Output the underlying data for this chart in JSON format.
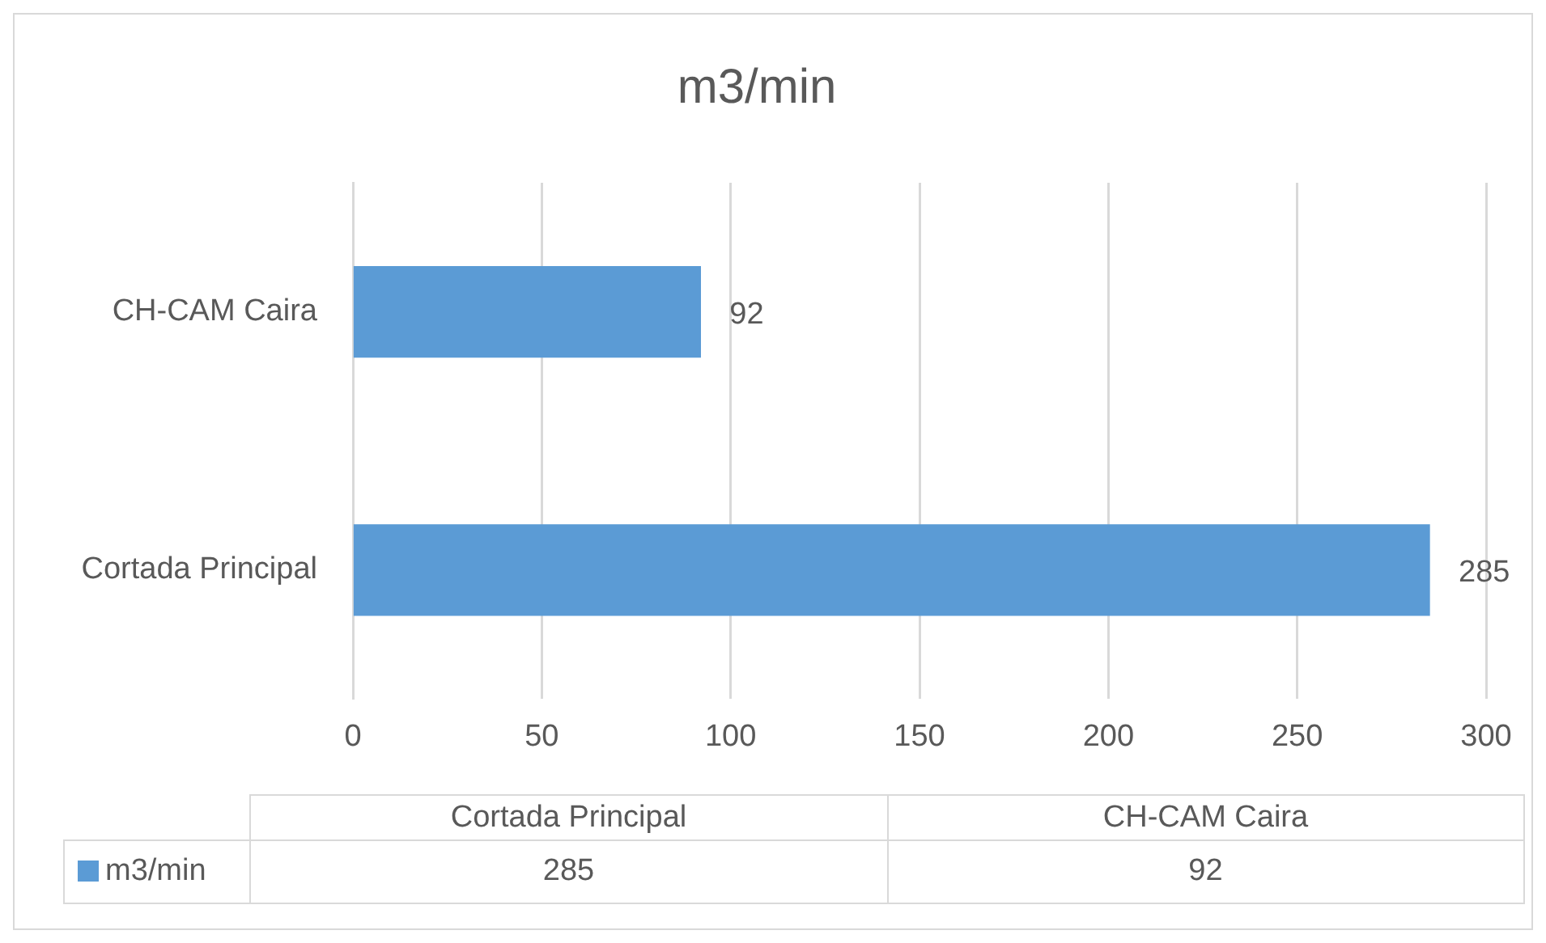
{
  "chart_data": {
    "type": "bar",
    "orientation": "horizontal",
    "title": "m3/min",
    "categories": [
      "CH-CAM Caira",
      "Cortada Principal"
    ],
    "series": [
      {
        "name": "m3/min",
        "color": "#5b9bd5",
        "values": [
          92,
          285
        ]
      }
    ],
    "annotations": [
      "285",
      "92"
    ],
    "xlim": [
      0,
      300
    ],
    "xticks": [
      0,
      50,
      100,
      150,
      200,
      250,
      300
    ],
    "grid": "x",
    "data_labels": true,
    "legend": "bottom"
  }
}
